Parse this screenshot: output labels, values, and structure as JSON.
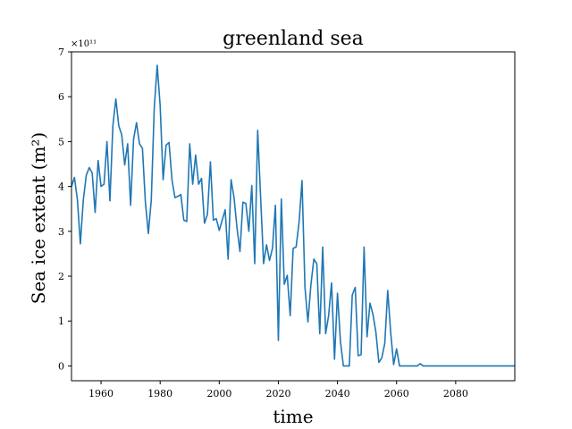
{
  "chart_data": {
    "type": "line",
    "title": "greenland sea",
    "xlabel": "time",
    "ylabel": "Sea ice extent (m²)",
    "y_offset_label": "×10¹¹",
    "xlim": [
      1950,
      2100
    ],
    "ylim": [
      -0.33,
      7.0
    ],
    "xticks": [
      1960,
      1980,
      2000,
      2020,
      2040,
      2060,
      2080
    ],
    "yticks": [
      0,
      1,
      2,
      3,
      4,
      5,
      6,
      7
    ],
    "grid": false,
    "series": [
      {
        "color": "#1f77b4",
        "x": [
          1950,
          1951,
          1952,
          1953,
          1954,
          1955,
          1956,
          1957,
          1958,
          1959,
          1960,
          1961,
          1962,
          1963,
          1964,
          1965,
          1966,
          1967,
          1968,
          1969,
          1970,
          1971,
          1972,
          1973,
          1974,
          1975,
          1976,
          1977,
          1978,
          1979,
          1980,
          1981,
          1982,
          1983,
          1984,
          1985,
          1986,
          1987,
          1988,
          1989,
          1990,
          1991,
          1992,
          1993,
          1994,
          1995,
          1996,
          1997,
          1998,
          1999,
          2000,
          2001,
          2002,
          2003,
          2004,
          2005,
          2006,
          2007,
          2008,
          2009,
          2010,
          2011,
          2012,
          2013,
          2014,
          2015,
          2016,
          2017,
          2018,
          2019,
          2020,
          2021,
          2022,
          2023,
          2024,
          2025,
          2026,
          2027,
          2028,
          2029,
          2030,
          2031,
          2032,
          2033,
          2034,
          2035,
          2036,
          2037,
          2038,
          2039,
          2040,
          2041,
          2042,
          2043,
          2044,
          2045,
          2046,
          2047,
          2048,
          2049,
          2050,
          2051,
          2052,
          2053,
          2054,
          2055,
          2056,
          2057,
          2058,
          2059,
          2060,
          2061,
          2062,
          2063,
          2064,
          2065,
          2066,
          2067,
          2068,
          2069,
          2070,
          2075,
          2080,
          2085,
          2090,
          2095,
          2100
        ],
        "y": [
          4.0,
          4.2,
          3.7,
          2.72,
          3.7,
          4.25,
          4.42,
          4.3,
          3.42,
          4.58,
          4.0,
          4.05,
          5.0,
          3.68,
          5.35,
          5.95,
          5.35,
          5.15,
          4.48,
          4.95,
          3.58,
          5.05,
          5.42,
          4.95,
          4.85,
          3.65,
          2.95,
          3.7,
          5.75,
          6.7,
          5.8,
          4.15,
          4.92,
          4.98,
          4.15,
          3.75,
          3.78,
          3.82,
          3.25,
          3.22,
          4.95,
          4.05,
          4.7,
          4.05,
          4.18,
          3.18,
          3.38,
          4.55,
          3.25,
          3.28,
          3.02,
          3.25,
          3.48,
          2.38,
          4.15,
          3.75,
          3.08,
          2.55,
          3.65,
          3.62,
          3.0,
          4.02,
          2.28,
          5.25,
          3.75,
          2.28,
          2.7,
          2.35,
          2.62,
          3.58,
          0.57,
          3.72,
          1.82,
          2.02,
          1.12,
          2.62,
          2.65,
          3.2,
          4.13,
          1.75,
          0.98,
          1.8,
          2.38,
          2.28,
          0.72,
          2.65,
          0.72,
          1.12,
          1.85,
          0.15,
          1.62,
          0.55,
          0.0,
          0.0,
          0.0,
          1.58,
          1.75,
          0.23,
          0.25,
          2.65,
          0.65,
          1.4,
          1.15,
          0.75,
          0.08,
          0.18,
          0.5,
          1.68,
          0.75,
          0.03,
          0.38,
          0.0,
          0.0,
          0.0,
          0.0,
          0.0,
          0.0,
          0.0,
          0.05,
          0.0,
          0.0,
          0.0,
          0.0,
          0.0,
          0.0,
          0.0,
          0.0
        ]
      }
    ]
  }
}
